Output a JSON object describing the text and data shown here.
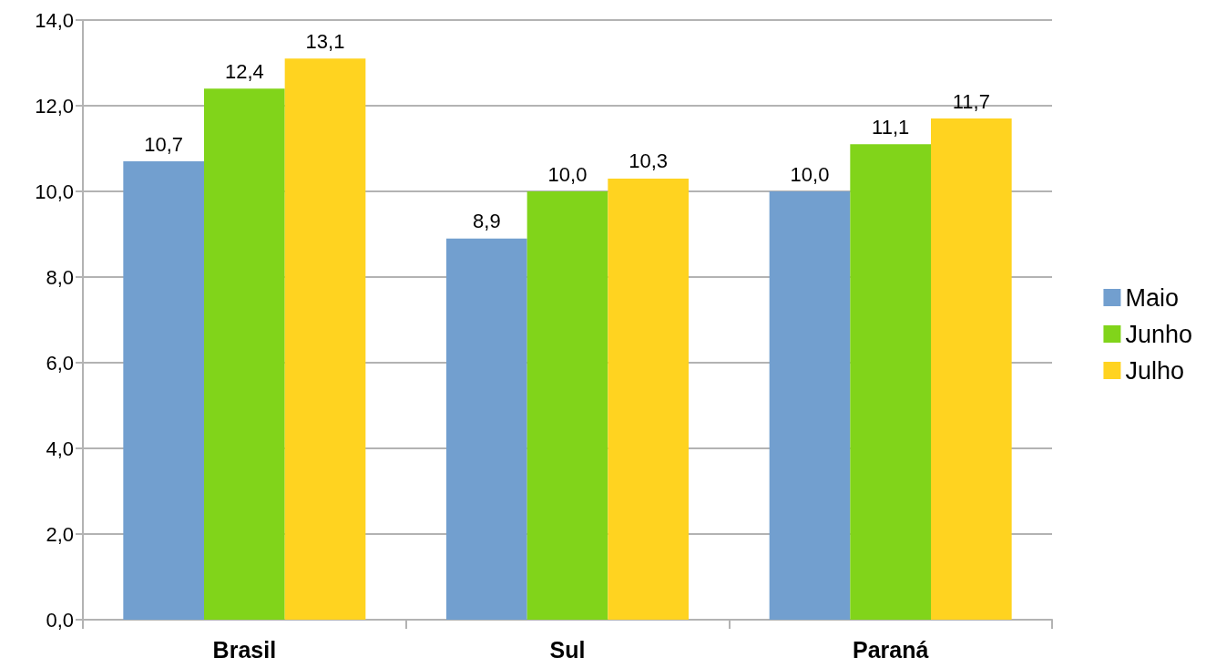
{
  "chart_data": {
    "type": "bar",
    "categories": [
      "Brasil",
      "Sul",
      "Paraná"
    ],
    "series": [
      {
        "name": "Maio",
        "color": "#729fcf",
        "values": [
          10.7,
          8.9,
          10.0
        ],
        "value_labels": [
          "10,7",
          "8,9",
          "10,0"
        ]
      },
      {
        "name": "Junho",
        "color": "#81d41a",
        "values": [
          12.4,
          10.0,
          11.1
        ],
        "value_labels": [
          "12,4",
          "10,0",
          "11,1"
        ]
      },
      {
        "name": "Julho",
        "color": "#ffd320",
        "values": [
          13.1,
          10.3,
          11.7
        ],
        "value_labels": [
          "13,1",
          "10,3",
          "11,7"
        ]
      }
    ],
    "ylim": [
      0,
      14
    ],
    "yticks": [
      {
        "value": 0,
        "label": "0,0"
      },
      {
        "value": 2,
        "label": "2,0"
      },
      {
        "value": 4,
        "label": "4,0"
      },
      {
        "value": 6,
        "label": "6,0"
      },
      {
        "value": 8,
        "label": "8,0"
      },
      {
        "value": 10,
        "label": "10,0"
      },
      {
        "value": 12,
        "label": "12,0"
      },
      {
        "value": 14,
        "label": "14,0"
      }
    ],
    "grid": "y",
    "legend": "right"
  }
}
